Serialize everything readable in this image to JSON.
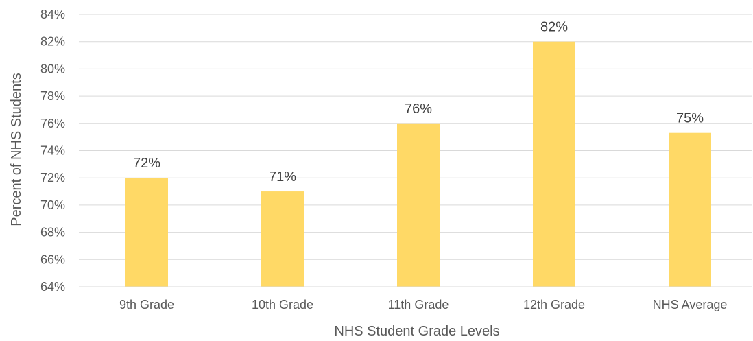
{
  "chart_data": {
    "type": "bar",
    "categories": [
      "9th Grade",
      "10th Grade",
      "11th Grade",
      "12th Grade",
      "NHS Average"
    ],
    "values": [
      72,
      71,
      76,
      82,
      75.3
    ],
    "data_labels": [
      "72%",
      "71%",
      "76%",
      "82%",
      "75%"
    ],
    "title": "",
    "xlabel": "NHS Student Grade Levels",
    "ylabel": "Percent of NHS Students",
    "ylim": [
      64,
      84
    ],
    "y_ticks": [
      64,
      66,
      68,
      70,
      72,
      74,
      76,
      78,
      80,
      82,
      84
    ],
    "y_tick_labels": [
      "64%",
      "66%",
      "68%",
      "70%",
      "72%",
      "74%",
      "76%",
      "78%",
      "80%",
      "82%",
      "84%"
    ],
    "grid": true,
    "legend": "none",
    "bar_color": "#FFD966",
    "grid_color": "#D9D9D9"
  }
}
